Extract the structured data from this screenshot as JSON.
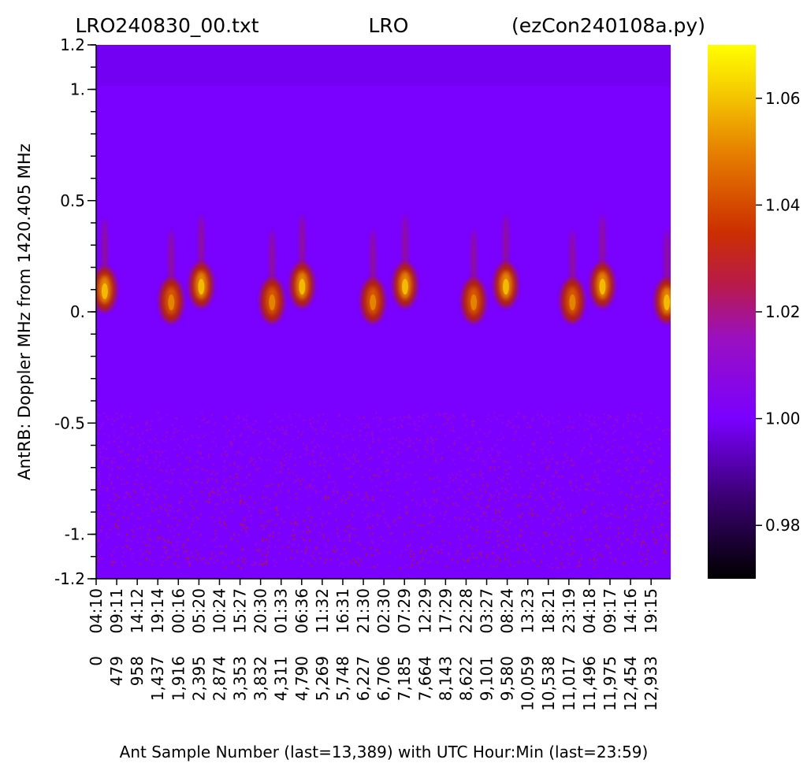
{
  "chart_data": {
    "type": "heatmap",
    "title_left": "LRO240830_00.txt",
    "title_center": "LRO",
    "title_right": "(ezCon240108a.py)",
    "xlabel": "Ant Sample Number (last=13,389) with UTC Hour:Min (last=23:59)",
    "ylabel": "AntRB:  Doppler MHz from 1420.405 MHz",
    "xlim": [
      0,
      13389
    ],
    "ylim": [
      -1.2,
      1.2
    ],
    "y_tick_values": [
      1.2,
      1.0,
      0.5,
      0.0,
      -0.5,
      -1.0,
      -1.2
    ],
    "y_tick_labels": [
      "1.2",
      "1.",
      "0.5",
      "0.",
      "-0.5",
      "-1.",
      "-1.2"
    ],
    "y_minor_tick_step": 0.1,
    "x_tick_samples": [
      0,
      479,
      958,
      1437,
      1916,
      2395,
      2874,
      3353,
      3832,
      4311,
      4790,
      5269,
      5748,
      6227,
      6706,
      7185,
      7664,
      8143,
      8622,
      9101,
      9580,
      10059,
      10538,
      11017,
      11496,
      11975,
      12454,
      12933
    ],
    "x_tick_sample_labels": [
      "0",
      "479",
      "958",
      "1,437",
      "1,916",
      "2,395",
      "2,874",
      "3,353",
      "3,832",
      "4,311",
      "4,790",
      "5,269",
      "5,748",
      "6,227",
      "6,706",
      "7,185",
      "7,664",
      "8,143",
      "8,622",
      "9,101",
      "9,580",
      "10,059",
      "10,538",
      "11,017",
      "11,496",
      "11,975",
      "12,454",
      "12,933"
    ],
    "x_tick_time_labels": [
      "04:10",
      "09:11",
      "14:12",
      "19:14",
      "00:16",
      "05:20",
      "10:24",
      "15:27",
      "20:30",
      "01:33",
      "06:36",
      "11:32",
      "16:31",
      "21:30",
      "02:30",
      "07:29",
      "12:29",
      "17:29",
      "22:28",
      "03:27",
      "08:24",
      "13:23",
      "18:21",
      "23:19",
      "04:18",
      "09:17",
      "14:16",
      "19:15"
    ],
    "colorbar": {
      "colormap": "gnuplot",
      "vmin": 0.97,
      "vmax": 1.07,
      "tick_values": [
        0.98,
        1.0,
        1.02,
        1.04,
        1.06
      ],
      "tick_labels": [
        "0.98",
        "1.00",
        "1.02",
        "1.04",
        "1.06"
      ]
    },
    "background_value": 1.0,
    "bright_features": [
      {
        "sample": 200,
        "doppler_mhz": 0.1,
        "peak_value": 1.06
      },
      {
        "sample": 1750,
        "doppler_mhz": 0.05,
        "peak_value": 1.05
      },
      {
        "sample": 2450,
        "doppler_mhz": 0.12,
        "peak_value": 1.06
      },
      {
        "sample": 4100,
        "doppler_mhz": 0.05,
        "peak_value": 1.05
      },
      {
        "sample": 4800,
        "doppler_mhz": 0.12,
        "peak_value": 1.06
      },
      {
        "sample": 6450,
        "doppler_mhz": 0.05,
        "peak_value": 1.05
      },
      {
        "sample": 7200,
        "doppler_mhz": 0.12,
        "peak_value": 1.06
      },
      {
        "sample": 8800,
        "doppler_mhz": 0.05,
        "peak_value": 1.05
      },
      {
        "sample": 9550,
        "doppler_mhz": 0.12,
        "peak_value": 1.06
      },
      {
        "sample": 11100,
        "doppler_mhz": 0.05,
        "peak_value": 1.05
      },
      {
        "sample": 11800,
        "doppler_mhz": 0.12,
        "peak_value": 1.06
      },
      {
        "sample": 13300,
        "doppler_mhz": 0.05,
        "peak_value": 1.06
      }
    ],
    "noise_band": {
      "doppler_range": [
        -1.15,
        -0.45
      ],
      "value_range": [
        1.0,
        1.02
      ]
    }
  }
}
